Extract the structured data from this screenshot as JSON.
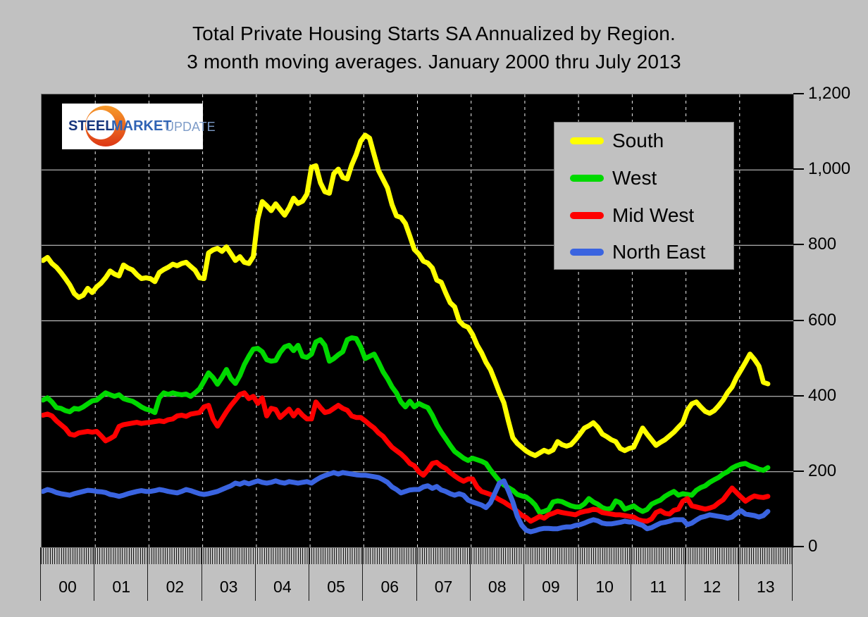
{
  "title": {
    "line1": "Total Private Housing Starts SA Annualized by Region.",
    "line2": "3 month moving averages. January 2000 thru July 2013"
  },
  "logo": {
    "part1": "STEEL",
    "part2": "MARKET",
    "part3": "UPDATE"
  },
  "colors": {
    "south": "#ffff00",
    "west": "#00d900",
    "midwest": "#ff0000",
    "northeast": "#3a64e0",
    "background": "#c1c1c1",
    "plot_background": "#000000",
    "h_gridline": "#dcdcdc",
    "v_gridline": "#efefef",
    "logo_crescent_top": "#f79b2a",
    "logo_crescent_bottom": "#dd3715"
  },
  "legend": {
    "items": [
      {
        "label": "South",
        "color": "#ffff00"
      },
      {
        "label": "West",
        "color": "#00d900"
      },
      {
        "label": "Mid West",
        "color": "#ff0000"
      },
      {
        "label": "North East",
        "color": "#3a64e0"
      }
    ]
  },
  "y_axis": {
    "labels": [
      "1,200",
      "1,000",
      "800",
      "600",
      "400",
      "200",
      "0"
    ],
    "values": [
      1200,
      1000,
      800,
      600,
      400,
      200,
      0
    ]
  },
  "x_axis": {
    "year_labels": [
      "00",
      "01",
      "02",
      "03",
      "04",
      "05",
      "06",
      "07",
      "08",
      "09",
      "10",
      "11",
      "12",
      "13"
    ]
  },
  "chart_data": {
    "type": "line",
    "title": "Total Private Housing Starts SA Annualized by Region. 3 month moving averages. January 2000 thru July 2013",
    "x_unit": "month",
    "x_start": "2000-01",
    "x_end": "2013-07",
    "ylim": [
      0,
      1200
    ],
    "y_ticks": [
      0,
      200,
      400,
      600,
      800,
      1000,
      1200
    ],
    "grid": "horizontal solid, vertical dashed at year boundaries",
    "legend_position": "top-right inside plot",
    "series": [
      {
        "name": "South",
        "color": "#ffff00",
        "values": [
          760,
          768,
          752,
          742,
          728,
          712,
          695,
          672,
          662,
          668,
          686,
          675,
          690,
          700,
          714,
          732,
          724,
          719,
          748,
          740,
          735,
          722,
          712,
          714,
          712,
          704,
          728,
          736,
          742,
          750,
          746,
          752,
          755,
          744,
          734,
          714,
          712,
          780,
          788,
          792,
          784,
          796,
          778,
          760,
          770,
          755,
          752,
          770,
          870,
          916,
          905,
          892,
          910,
          895,
          880,
          899,
          925,
          911,
          917,
          936,
          1007,
          1011,
          966,
          942,
          938,
          990,
          1002,
          980,
          976,
          1013,
          1041,
          1076,
          1092,
          1084,
          1040,
          998,
          975,
          952,
          908,
          878,
          874,
          858,
          824,
          789,
          777,
          758,
          753,
          740,
          708,
          702,
          674,
          648,
          637,
          600,
          588,
          583,
          564,
          536,
          516,
          490,
          471,
          441,
          410,
          383,
          335,
          290,
          275,
          265,
          255,
          248,
          243,
          250,
          257,
          252,
          258,
          280,
          272,
          268,
          272,
          285,
          300,
          316,
          322,
          330,
          318,
          300,
          293,
          285,
          280,
          262,
          256,
          262,
          265,
          290,
          316,
          300,
          285,
          270,
          278,
          285,
          295,
          305,
          318,
          330,
          363,
          380,
          385,
          372,
          360,
          355,
          362,
          375,
          390,
          410,
          425,
          450,
          470,
          490,
          512,
          498,
          480,
          437,
          433
        ]
      },
      {
        "name": "West",
        "color": "#00d900",
        "values": [
          390,
          396,
          385,
          370,
          368,
          362,
          359,
          368,
          366,
          372,
          380,
          388,
          390,
          400,
          409,
          404,
          400,
          404,
          394,
          390,
          387,
          380,
          372,
          366,
          363,
          357,
          396,
          409,
          405,
          409,
          406,
          404,
          406,
          400,
          409,
          420,
          440,
          462,
          450,
          432,
          450,
          471,
          447,
          434,
          455,
          484,
          506,
          525,
          527,
          518,
          497,
          493,
          495,
          516,
          531,
          535,
          521,
          535,
          506,
          503,
          512,
          544,
          550,
          535,
          493,
          500,
          510,
          518,
          550,
          555,
          553,
          531,
          500,
          506,
          512,
          490,
          465,
          447,
          425,
          409,
          385,
          372,
          387,
          372,
          381,
          375,
          370,
          350,
          325,
          305,
          288,
          270,
          254,
          245,
          236,
          230,
          236,
          232,
          228,
          222,
          205,
          190,
          176,
          165,
          158,
          151,
          140,
          136,
          133,
          124,
          112,
          92,
          95,
          100,
          120,
          123,
          121,
          115,
          110,
          107,
          107,
          115,
          129,
          120,
          114,
          105,
          101,
          103,
          123,
          118,
          101,
          105,
          110,
          101,
          95,
          100,
          114,
          120,
          125,
          135,
          142,
          148,
          138,
          142,
          140,
          138,
          151,
          158,
          163,
          172,
          179,
          185,
          194,
          200,
          210,
          216,
          220,
          222,
          216,
          212,
          207,
          204,
          211
        ]
      },
      {
        "name": "Mid West",
        "color": "#ff0000",
        "values": [
          350,
          353,
          348,
          335,
          325,
          315,
          300,
          297,
          303,
          305,
          307,
          305,
          307,
          295,
          282,
          288,
          295,
          320,
          325,
          327,
          329,
          331,
          328,
          330,
          331,
          333,
          335,
          333,
          338,
          340,
          348,
          350,
          347,
          353,
          355,
          357,
          372,
          376,
          340,
          321,
          340,
          359,
          376,
          390,
          405,
          409,
          394,
          400,
          381,
          396,
          348,
          368,
          365,
          344,
          355,
          366,
          348,
          363,
          350,
          340,
          340,
          385,
          370,
          357,
          360,
          368,
          376,
          368,
          363,
          348,
          344,
          344,
          335,
          325,
          316,
          303,
          294,
          279,
          265,
          256,
          247,
          236,
          222,
          216,
          200,
          191,
          205,
          222,
          225,
          215,
          209,
          198,
          189,
          181,
          175,
          181,
          181,
          160,
          148,
          144,
          140,
          133,
          126,
          120,
          112,
          105,
          95,
          85,
          79,
          69,
          75,
          82,
          77,
          86,
          90,
          95,
          92,
          90,
          88,
          86,
          92,
          95,
          97,
          101,
          99,
          92,
          90,
          88,
          86,
          86,
          84,
          82,
          80,
          73,
          70,
          69,
          75,
          92,
          97,
          90,
          88,
          98,
          101,
          122,
          129,
          110,
          107,
          104,
          101,
          104,
          108,
          118,
          126,
          142,
          157,
          145,
          133,
          122,
          130,
          136,
          133,
          132,
          135
        ]
      },
      {
        "name": "North East",
        "color": "#3a64e0",
        "values": [
          148,
          153,
          150,
          145,
          142,
          140,
          138,
          142,
          145,
          148,
          151,
          150,
          148,
          147,
          145,
          140,
          138,
          135,
          138,
          142,
          145,
          148,
          150,
          148,
          148,
          150,
          153,
          151,
          148,
          146,
          144,
          148,
          153,
          150,
          146,
          142,
          140,
          142,
          145,
          148,
          153,
          158,
          163,
          170,
          167,
          172,
          168,
          172,
          176,
          172,
          170,
          172,
          176,
          172,
          170,
          174,
          172,
          170,
          172,
          174,
          170,
          178,
          185,
          190,
          194,
          198,
          194,
          198,
          196,
          194,
          192,
          191,
          191,
          189,
          187,
          185,
          179,
          172,
          160,
          153,
          144,
          148,
          152,
          153,
          153,
          160,
          163,
          156,
          161,
          152,
          148,
          142,
          138,
          142,
          138,
          125,
          120,
          116,
          112,
          105,
          118,
          144,
          170,
          176,
          150,
          120,
          82,
          58,
          45,
          41,
          44,
          48,
          50,
          50,
          49,
          49,
          52,
          54,
          54,
          58,
          60,
          64,
          69,
          73,
          70,
          64,
          62,
          62,
          64,
          66,
          69,
          67,
          67,
          62,
          58,
          49,
          52,
          58,
          64,
          66,
          69,
          73,
          73,
          73,
          60,
          64,
          72,
          79,
          82,
          86,
          84,
          82,
          80,
          77,
          80,
          90,
          97,
          88,
          86,
          84,
          80,
          84,
          95
        ]
      }
    ]
  }
}
